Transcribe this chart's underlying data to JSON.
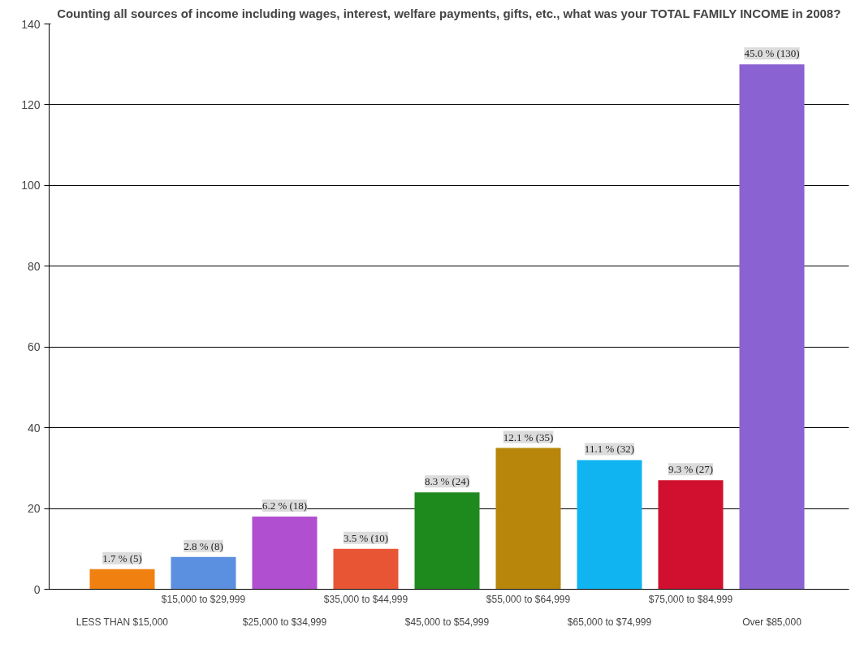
{
  "chart_data": {
    "type": "bar",
    "title": "Counting all sources of income including wages, interest, welfare payments, gifts, etc., what was your TOTAL FAMILY INCOME in 2008?",
    "categories": [
      "LESS THAN $15,000",
      "$15,000 to $29,999",
      "$25,000 to $34,999",
      "$35,000 to $44,999",
      "$45,000 to $54,999",
      "$55,000 to $64,999",
      "$65,000 to $74,999",
      "$75,000 to $84,999",
      "Over $85,000"
    ],
    "values": [
      5,
      8,
      18,
      10,
      24,
      35,
      32,
      27,
      130
    ],
    "colors": [
      "#f08010",
      "#5b8fe0",
      "#b050d0",
      "#e85535",
      "#1e8a1e",
      "#b8860b",
      "#10b4f0",
      "#d0102e",
      "#8a62d2"
    ],
    "value_labels": [
      "1.7 % (5)",
      "2.8 % (8)",
      "6.2 % (18)",
      "3.5 % (10)",
      "8.3 % (24)",
      "12.1 % (35)",
      "11.1 % (32)",
      "9.3 % (27)",
      "45.0 % (130)"
    ],
    "ylim": [
      0,
      140
    ],
    "yticks": [
      0,
      20,
      40,
      60,
      80,
      100,
      120,
      140
    ],
    "grid": "y"
  }
}
